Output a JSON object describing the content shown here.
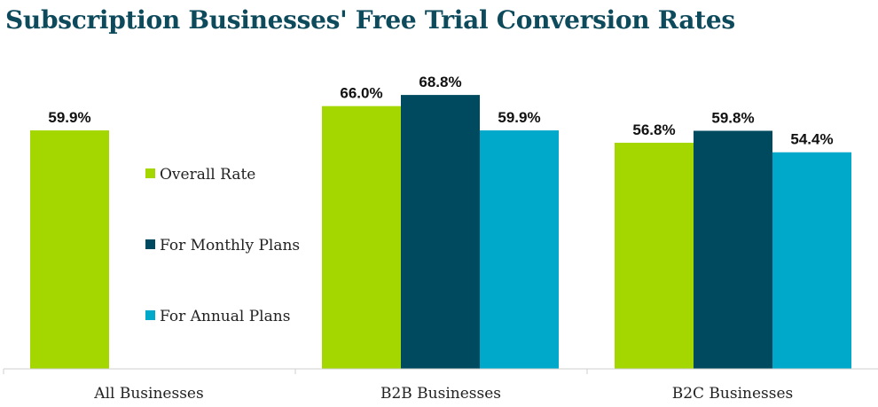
{
  "chart_data": {
    "type": "bar",
    "title": "Subscription Businesses' Free Trial Conversion Rates",
    "categories": [
      "All Businesses",
      "B2B Businesses",
      "B2C Businesses"
    ],
    "series": [
      {
        "name": "Overall Rate",
        "color": "#a4d700",
        "values": [
          59.9,
          66.0,
          56.8
        ],
        "labels": [
          "59.9%",
          "66.0%",
          "56.8%"
        ]
      },
      {
        "name": "For Monthly Plans",
        "color": "#004a60",
        "values": [
          null,
          68.8,
          59.8
        ],
        "labels": [
          "",
          "68.8%",
          "59.8%"
        ]
      },
      {
        "name": "For Annual Plans",
        "color": "#00a9c9",
        "values": [
          null,
          59.9,
          54.4
        ],
        "labels": [
          "",
          "59.9%",
          "54.4%"
        ]
      }
    ],
    "ylim": [
      0,
      100
    ],
    "grid": false,
    "legend_position": "center-left"
  }
}
